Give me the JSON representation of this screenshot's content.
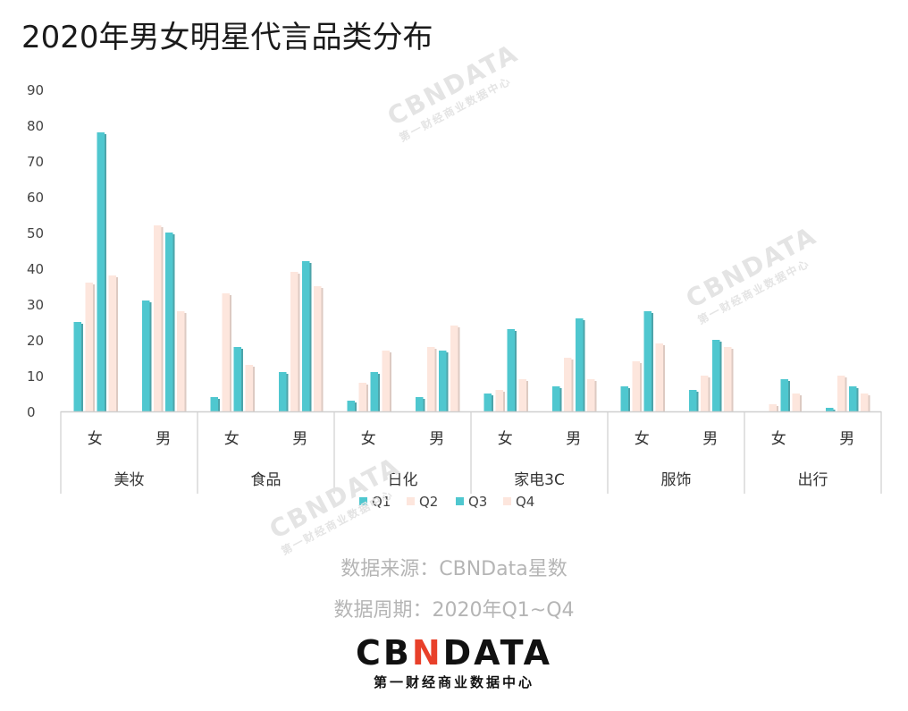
{
  "title": "2020年男女明星代言品类分布",
  "footer": {
    "source": "数据来源：CBNData星数",
    "period": "数据周期：2020年Q1~Q4",
    "logo_left": "CB",
    "logo_n": "N",
    "logo_right": "DATA",
    "logo_sub": "第一财经商业数据中心"
  },
  "watermark": {
    "text": "CBNDATA",
    "sub": "第一财经商业数据中心"
  },
  "colors": {
    "q1": "#4fc7cf",
    "q2": "#fde6dd",
    "q3": "#4fc7cf",
    "q4": "#fde6dd"
  },
  "chart_data": {
    "type": "bar",
    "title": "2020年男女明星代言品类分布",
    "groups": [
      "美妆",
      "食品",
      "日化",
      "家电3C",
      "服饰",
      "出行"
    ],
    "subcategories": [
      "女",
      "男"
    ],
    "categories": [
      "美妆-女",
      "美妆-男",
      "食品-女",
      "食品-男",
      "日化-女",
      "日化-男",
      "家电3C-女",
      "家电3C-男",
      "服饰-女",
      "服饰-男",
      "出行-女",
      "出行-男"
    ],
    "series": [
      {
        "name": "Q1",
        "values": [
          25,
          31,
          4,
          11,
          3,
          4,
          5,
          7,
          7,
          6,
          0,
          1
        ]
      },
      {
        "name": "Q2",
        "values": [
          36,
          52,
          33,
          39,
          8,
          18,
          6,
          15,
          14,
          10,
          2,
          10
        ]
      },
      {
        "name": "Q3",
        "values": [
          78,
          50,
          18,
          42,
          11,
          17,
          23,
          26,
          28,
          20,
          9,
          7
        ]
      },
      {
        "name": "Q4",
        "values": [
          38,
          28,
          13,
          35,
          17,
          24,
          9,
          9,
          19,
          18,
          5,
          5
        ]
      }
    ],
    "ylim": [
      0,
      90
    ],
    "yticks": [
      0,
      10,
      20,
      30,
      40,
      50,
      60,
      70,
      80,
      90
    ],
    "grid": false,
    "legend": "bottom"
  }
}
